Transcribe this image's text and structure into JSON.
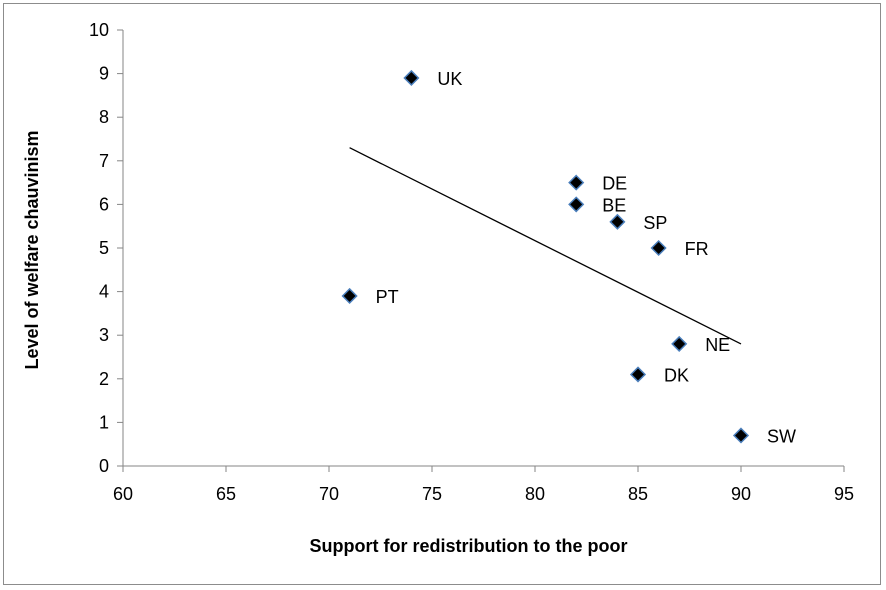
{
  "chart_data": {
    "type": "scatter",
    "title": "",
    "xlabel": "Support for redistribution to the poor",
    "ylabel": "Level of welfare chauvinism",
    "xlim": [
      60,
      95
    ],
    "ylim": [
      0,
      10
    ],
    "x_ticks": [
      "60",
      "65",
      "70",
      "75",
      "80",
      "85",
      "90",
      "95"
    ],
    "y_ticks": [
      "0",
      "1",
      "2",
      "3",
      "4",
      "5",
      "6",
      "7",
      "8",
      "9",
      "10"
    ],
    "grid": false,
    "legend": "none",
    "marker": "diamond",
    "marker_fill": "#000000",
    "marker_edge": "#4a7ebb",
    "points": [
      {
        "label": "UK",
        "x": 74,
        "y": 8.9
      },
      {
        "label": "DE",
        "x": 82,
        "y": 6.5
      },
      {
        "label": "BE",
        "x": 82,
        "y": 6.0
      },
      {
        "label": "SP",
        "x": 84,
        "y": 5.6
      },
      {
        "label": "FR",
        "x": 86,
        "y": 5.0
      },
      {
        "label": "PT",
        "x": 71,
        "y": 3.9
      },
      {
        "label": "NE",
        "x": 87,
        "y": 2.8
      },
      {
        "label": "DK",
        "x": 85,
        "y": 2.1
      },
      {
        "label": "SW",
        "x": 90,
        "y": 0.7
      }
    ],
    "trendline": {
      "type": "linear",
      "x": [
        71,
        90
      ],
      "y": [
        7.3,
        2.8
      ]
    }
  }
}
